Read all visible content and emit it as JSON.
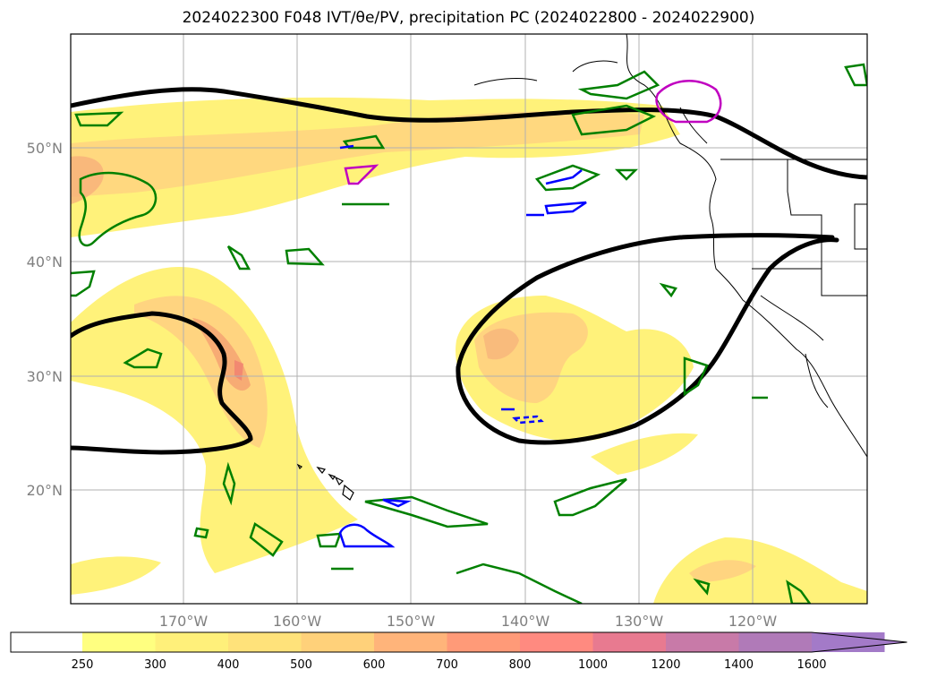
{
  "title": "2024022300 F048 IVT/θe/PV, precipitation PC (2024022800 - 2024022900)",
  "map": {
    "lat_labels": [
      "50°N",
      "40°N",
      "30°N",
      "20°N"
    ],
    "lon_labels": [
      "170°W",
      "160°W",
      "150°W",
      "140°W",
      "130°W",
      "120°W"
    ],
    "grid": true
  },
  "colorbar": {
    "ticks": [
      "250",
      "300",
      "400",
      "500",
      "600",
      "700",
      "800",
      "1000",
      "1200",
      "1400",
      "1600"
    ],
    "colors": [
      "#ffffff",
      "#ffff80",
      "#fff07a",
      "#ffe27a",
      "#ffd17a",
      "#ffb47a",
      "#ff9a78",
      "#ff8a80",
      "#e87a90",
      "#c87aa8",
      "#b07ab8",
      "#a37ac8"
    ]
  },
  "colors": {
    "ivt_light": "#fff27a",
    "ivt_mid": "#ffd480",
    "ivt_high": "#f5a070",
    "theta_e": "#000000",
    "pv_green": "#008000",
    "precip_blue": "#0000ff",
    "precip_magenta": "#c000c0"
  }
}
